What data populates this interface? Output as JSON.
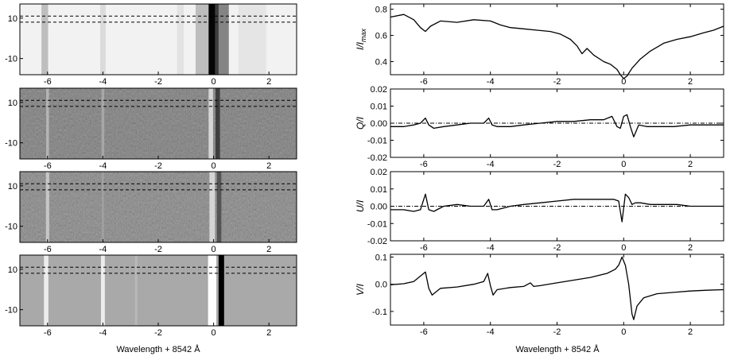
{
  "figure": {
    "left_xlabel": "Wavelength + 8542 Å",
    "right_xlabel": "Wavelength + 8542 Å"
  },
  "chart_data": [
    {
      "type": "heatmap",
      "panel": "I-image",
      "xlim": [
        -7,
        3
      ],
      "ylim": [
        -18,
        17
      ],
      "xticks": [
        -6,
        -4,
        -2,
        0,
        2
      ],
      "yticks": [
        10,
        -10
      ],
      "xtick_labels": [
        "-6",
        "-4",
        "-2",
        "0",
        "2"
      ],
      "ytick_labels": [
        "10",
        "-10"
      ],
      "dashed_rows": [
        8,
        11
      ]
    },
    {
      "type": "heatmap",
      "panel": "Q-image",
      "xlim": [
        -7,
        3
      ],
      "ylim": [
        -18,
        17
      ],
      "xticks": [
        -6,
        -4,
        -2,
        0,
        2
      ],
      "yticks": [
        10,
        -10
      ],
      "xtick_labels": [
        "-6",
        "-4",
        "-2",
        "0",
        "2"
      ],
      "ytick_labels": [
        "10",
        "-10"
      ],
      "dashed_rows": [
        8,
        11
      ]
    },
    {
      "type": "heatmap",
      "panel": "U-image",
      "xlim": [
        -7,
        3
      ],
      "ylim": [
        -18,
        17
      ],
      "xticks": [
        -6,
        -4,
        -2,
        0,
        2
      ],
      "yticks": [
        10,
        -10
      ],
      "xtick_labels": [
        "-6",
        "-4",
        "-2",
        "0",
        "2"
      ],
      "ytick_labels": [
        "10",
        "-10"
      ],
      "dashed_rows": [
        8,
        11
      ]
    },
    {
      "type": "heatmap",
      "panel": "V-image",
      "xlim": [
        -7,
        3
      ],
      "ylim": [
        -18,
        17
      ],
      "xticks": [
        -6,
        -4,
        -2,
        0,
        2
      ],
      "yticks": [
        10,
        -10
      ],
      "xtick_labels": [
        "-6",
        "-4",
        "-2",
        "0",
        "2"
      ],
      "ytick_labels": [
        "10",
        "-10"
      ],
      "dashed_rows": [
        8,
        11
      ]
    },
    {
      "type": "line",
      "panel": "I-profile",
      "ylabel_main": "I/I",
      "ylabel_sub": "max",
      "xlim": [
        -7,
        3
      ],
      "ylim": [
        0.3,
        0.84
      ],
      "xticks": [
        -6,
        -4,
        -2,
        0,
        2
      ],
      "yticks": [
        0.4,
        0.6,
        0.8
      ],
      "xtick_labels": [
        "-6",
        "-4",
        "-2",
        "0",
        "2"
      ],
      "ytick_labels": [
        "0.4",
        "0.6",
        "0.8"
      ],
      "x": [
        -7,
        -6.6,
        -6.3,
        -6.1,
        -5.95,
        -5.8,
        -5.5,
        -5.0,
        -4.5,
        -4.0,
        -3.7,
        -3.4,
        -3.0,
        -2.6,
        -2.2,
        -1.9,
        -1.6,
        -1.4,
        -1.25,
        -1.1,
        -0.9,
        -0.6,
        -0.4,
        -0.2,
        -0.1,
        0.0,
        0.1,
        0.25,
        0.5,
        0.8,
        1.2,
        1.6,
        2.0,
        2.4,
        2.7,
        3.0
      ],
      "y": [
        0.74,
        0.76,
        0.72,
        0.66,
        0.63,
        0.67,
        0.71,
        0.7,
        0.72,
        0.71,
        0.68,
        0.66,
        0.65,
        0.64,
        0.63,
        0.61,
        0.57,
        0.52,
        0.46,
        0.5,
        0.45,
        0.4,
        0.38,
        0.34,
        0.3,
        0.27,
        0.29,
        0.35,
        0.42,
        0.48,
        0.54,
        0.57,
        0.59,
        0.62,
        0.64,
        0.67
      ]
    },
    {
      "type": "line",
      "panel": "Q-profile",
      "ylabel_main": "Q/I",
      "xlim": [
        -7,
        3
      ],
      "ylim": [
        -0.02,
        0.02
      ],
      "xticks": [
        -6,
        -4,
        -2,
        0,
        2
      ],
      "yticks": [
        0.02,
        0.01,
        0.0,
        -0.01,
        -0.02
      ],
      "xtick_labels": [
        "-6",
        "-4",
        "-2",
        "0",
        "2"
      ],
      "ytick_labels": [
        "0.02",
        "0.01",
        "0.00",
        "-0.01",
        "-0.02"
      ],
      "zero_line": 0.0,
      "x": [
        -7,
        -6.6,
        -6.3,
        -6.1,
        -5.95,
        -5.85,
        -5.7,
        -5.4,
        -5.0,
        -4.6,
        -4.2,
        -4.05,
        -3.95,
        -3.8,
        -3.4,
        -3.0,
        -2.5,
        -2.0,
        -1.5,
        -1.0,
        -0.6,
        -0.35,
        -0.2,
        -0.1,
        0.0,
        0.1,
        0.2,
        0.3,
        0.45,
        0.7,
        1.0,
        1.5,
        2.0,
        2.5,
        3.0
      ],
      "y": [
        -0.002,
        -0.002,
        -0.001,
        0.0,
        0.003,
        -0.001,
        -0.003,
        -0.002,
        -0.001,
        0.0,
        0.0,
        0.003,
        -0.001,
        -0.002,
        -0.002,
        -0.001,
        0.0,
        0.001,
        0.001,
        0.002,
        0.002,
        0.004,
        -0.002,
        -0.003,
        0.004,
        0.005,
        -0.002,
        -0.008,
        -0.001,
        -0.002,
        -0.002,
        -0.002,
        -0.001,
        -0.001,
        -0.001
      ]
    },
    {
      "type": "line",
      "panel": "U-profile",
      "ylabel_main": "U/I",
      "xlim": [
        -7,
        3
      ],
      "ylim": [
        -0.02,
        0.02
      ],
      "xticks": [
        -6,
        -4,
        -2,
        0,
        2
      ],
      "yticks": [
        0.02,
        0.01,
        0.0,
        -0.01,
        -0.02
      ],
      "xtick_labels": [
        "-6",
        "-4",
        "-2",
        "0",
        "2"
      ],
      "ytick_labels": [
        "0.02",
        "0.01",
        "0.00",
        "-0.01",
        "-0.02"
      ],
      "zero_line": 0.0,
      "x": [
        -7,
        -6.6,
        -6.3,
        -6.1,
        -5.95,
        -5.85,
        -5.7,
        -5.4,
        -5.0,
        -4.6,
        -4.2,
        -4.05,
        -3.95,
        -3.8,
        -3.4,
        -3.0,
        -2.5,
        -2.0,
        -1.5,
        -1.0,
        -0.6,
        -0.3,
        -0.15,
        -0.05,
        0.05,
        0.15,
        0.25,
        0.35,
        0.5,
        0.8,
        1.2,
        1.6,
        2.0,
        2.5,
        3.0
      ],
      "y": [
        -0.002,
        -0.002,
        -0.003,
        -0.002,
        0.007,
        -0.002,
        -0.003,
        0.0,
        0.001,
        0.0,
        0.0,
        0.004,
        -0.002,
        -0.002,
        0.0,
        0.001,
        0.002,
        0.003,
        0.004,
        0.004,
        0.004,
        0.004,
        0.003,
        -0.009,
        0.007,
        0.005,
        0.001,
        0.002,
        0.002,
        0.001,
        0.001,
        0.001,
        0.0,
        0.0,
        0.0
      ]
    },
    {
      "type": "line",
      "panel": "V-profile",
      "ylabel_main": "V/I",
      "xlim": [
        -7,
        3
      ],
      "ylim": [
        -0.15,
        0.11
      ],
      "xticks": [
        -6,
        -4,
        -2,
        0,
        2
      ],
      "yticks": [
        0.1,
        0.0,
        -0.1
      ],
      "xtick_labels": [
        "-6",
        "-4",
        "-2",
        "0",
        "2"
      ],
      "ytick_labels": [
        "0.1",
        "0.0",
        "-0.1"
      ],
      "x": [
        -7,
        -6.6,
        -6.3,
        -6.1,
        -5.95,
        -5.85,
        -5.75,
        -5.5,
        -5.0,
        -4.5,
        -4.2,
        -4.08,
        -4.0,
        -3.92,
        -3.8,
        -3.4,
        -3.0,
        -2.8,
        -2.7,
        -2.5,
        -2.0,
        -1.5,
        -1.0,
        -0.5,
        -0.25,
        -0.15,
        -0.05,
        0.05,
        0.15,
        0.25,
        0.3,
        0.4,
        0.6,
        1.0,
        1.5,
        2.0,
        2.5,
        3.0
      ],
      "y": [
        -0.002,
        0.002,
        0.01,
        0.03,
        0.045,
        -0.015,
        -0.04,
        -0.015,
        -0.01,
        0.0,
        0.01,
        0.04,
        -0.005,
        -0.04,
        -0.02,
        -0.012,
        -0.008,
        0.005,
        -0.008,
        -0.005,
        0.005,
        0.015,
        0.025,
        0.04,
        0.055,
        0.07,
        0.1,
        0.07,
        0.0,
        -0.11,
        -0.13,
        -0.08,
        -0.05,
        -0.035,
        -0.03,
        -0.025,
        -0.022,
        -0.02
      ]
    }
  ]
}
